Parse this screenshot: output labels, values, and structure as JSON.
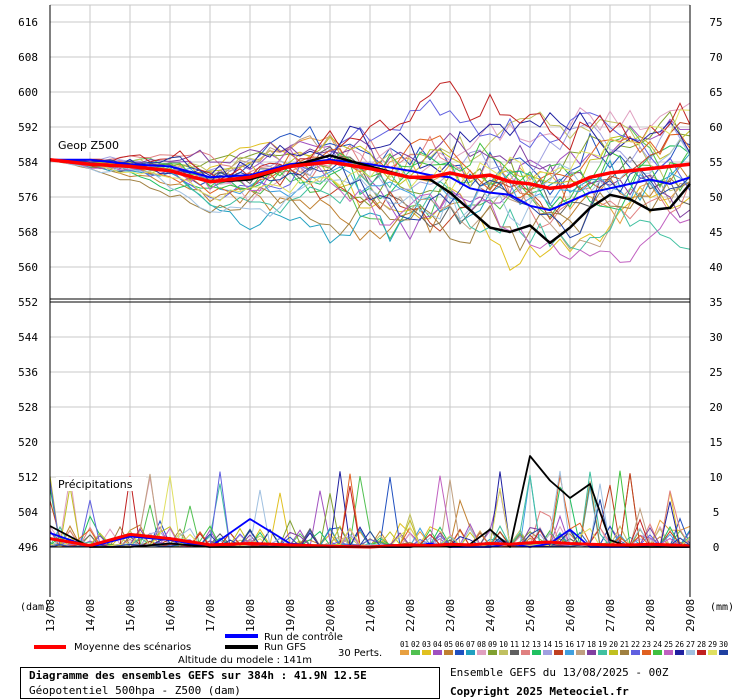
{
  "chart_data": {
    "type": "line",
    "title": "Diagramme des ensembles GEFS sur 384h : 41.9N 12.5E",
    "subtitle": "Géopotentiel 500hpa - Z500 (dam)",
    "left_axis": {
      "unit": "(dam)",
      "ticks": [
        616,
        608,
        600,
        592,
        584,
        576,
        568,
        560,
        552,
        544,
        536,
        528,
        520,
        512,
        504,
        496
      ]
    },
    "right_axis": {
      "unit": "(mm)",
      "ticks": [
        75,
        70,
        65,
        60,
        55,
        50,
        45,
        40,
        35,
        30,
        25,
        20,
        15,
        10,
        5,
        0
      ]
    },
    "x_axis": {
      "range_hours": [
        0,
        384
      ],
      "tick_labels": [
        "13/08",
        "14/08",
        "15/08",
        "16/08",
        "17/08",
        "18/08",
        "19/08",
        "20/08",
        "21/08",
        "22/08",
        "23/08",
        "24/08",
        "25/08",
        "26/08",
        "27/08",
        "28/08",
        "29/08"
      ]
    },
    "panel_labels": {
      "geop": "Geop Z500",
      "precip": "Précipitations"
    },
    "legend": {
      "control": "Run de contrôle",
      "gfs": "Run GFS",
      "mean": "Moyenne des scénarios",
      "perts_label": "30 Perts."
    },
    "altitude_label": "Altitude du modele : 141m",
    "info_line": "Ensemble GEFS du 13/08/2025 - 00Z",
    "copyright": "Copyright 2025 Meteociel.fr",
    "perturbation_ids": [
      "01",
      "02",
      "03",
      "04",
      "05",
      "06",
      "07",
      "08",
      "09",
      "10",
      "11",
      "12",
      "13",
      "14",
      "15",
      "16",
      "17",
      "18",
      "19",
      "20",
      "21",
      "22",
      "23",
      "24",
      "25",
      "26",
      "27",
      "28",
      "29",
      "30"
    ],
    "colors": {
      "control": "#0000ff",
      "gfs": "#000000",
      "mean": "#ff0000",
      "perts": [
        "#e8a040",
        "#50c050",
        "#e0c020",
        "#a050c0",
        "#c08030",
        "#2050c0",
        "#20a0c0",
        "#e0a0c0",
        "#80a030",
        "#c0c060",
        "#606060",
        "#e08080",
        "#20c060",
        "#a0a0e0",
        "#c04020",
        "#40a0e0",
        "#c0a080",
        "#8040a0",
        "#40c0a0",
        "#c0c020",
        "#a08040",
        "#6060e0",
        "#e06020",
        "#40c040",
        "#c060c0",
        "#2020a0",
        "#a0c0e0",
        "#c02020",
        "#e0e060",
        "#2040a0"
      ]
    },
    "series": [
      {
        "name": "Run GFS",
        "hours": [
          0,
          24,
          48,
          72,
          96,
          120,
          144,
          168,
          192,
          216,
          228,
          240,
          252,
          264,
          276,
          288,
          300,
          312,
          324,
          336,
          348,
          360,
          372,
          384
        ],
        "z500": [
          584.5,
          583.5,
          583,
          582,
          579.5,
          580,
          583,
          585.5,
          583,
          580.5,
          580,
          577,
          573,
          569,
          568,
          569.5,
          565.5,
          569,
          573.5,
          576.5,
          575.5,
          573,
          573.5,
          579
        ],
        "precip_mm": [
          3,
          0,
          0,
          0.5,
          0,
          0,
          0,
          0,
          0,
          0,
          0.3,
          0,
          0.4,
          2.5,
          0,
          13,
          9.5,
          7,
          9,
          1,
          0,
          0,
          0,
          0
        ]
      },
      {
        "name": "Run de contrôle",
        "hours": [
          0,
          24,
          48,
          72,
          96,
          120,
          144,
          168,
          192,
          216,
          228,
          240,
          252,
          264,
          276,
          288,
          300,
          312,
          324,
          336,
          348,
          360,
          372,
          384
        ],
        "z500": [
          584.5,
          584.5,
          583.5,
          583,
          580.5,
          581,
          583.5,
          584.5,
          583.5,
          582,
          581,
          580.5,
          578,
          577,
          576.5,
          574,
          573,
          575,
          577,
          578,
          579,
          580,
          579,
          580.5
        ],
        "precip_mm": [
          2,
          0,
          1.5,
          1,
          0,
          4,
          0.5,
          0,
          0,
          0,
          0.5,
          0,
          0,
          0,
          0.5,
          0,
          0.5,
          2.5,
          0,
          0,
          0,
          0.3,
          0,
          0
        ]
      },
      {
        "name": "Moyenne des scénarios",
        "hours": [
          0,
          24,
          48,
          72,
          96,
          120,
          144,
          168,
          192,
          216,
          228,
          240,
          252,
          264,
          276,
          288,
          300,
          312,
          324,
          336,
          348,
          360,
          372,
          384
        ],
        "z500": [
          584.5,
          583.5,
          583,
          582,
          579.5,
          580.5,
          583,
          584,
          582.5,
          580.5,
          580.5,
          581.5,
          580.5,
          581,
          579.5,
          579,
          578,
          578.5,
          580.5,
          581.5,
          582,
          582.5,
          583,
          583.5
        ],
        "precip_mm": [
          1.2,
          0.2,
          1.8,
          1.2,
          0.3,
          0.5,
          0.3,
          0.1,
          0,
          0.3,
          0.2,
          0.4,
          0.3,
          0.5,
          0.4,
          0.6,
          0.7,
          0.5,
          0.4,
          0.3,
          0.3,
          0.4,
          0.3,
          0.1
        ]
      }
    ]
  }
}
